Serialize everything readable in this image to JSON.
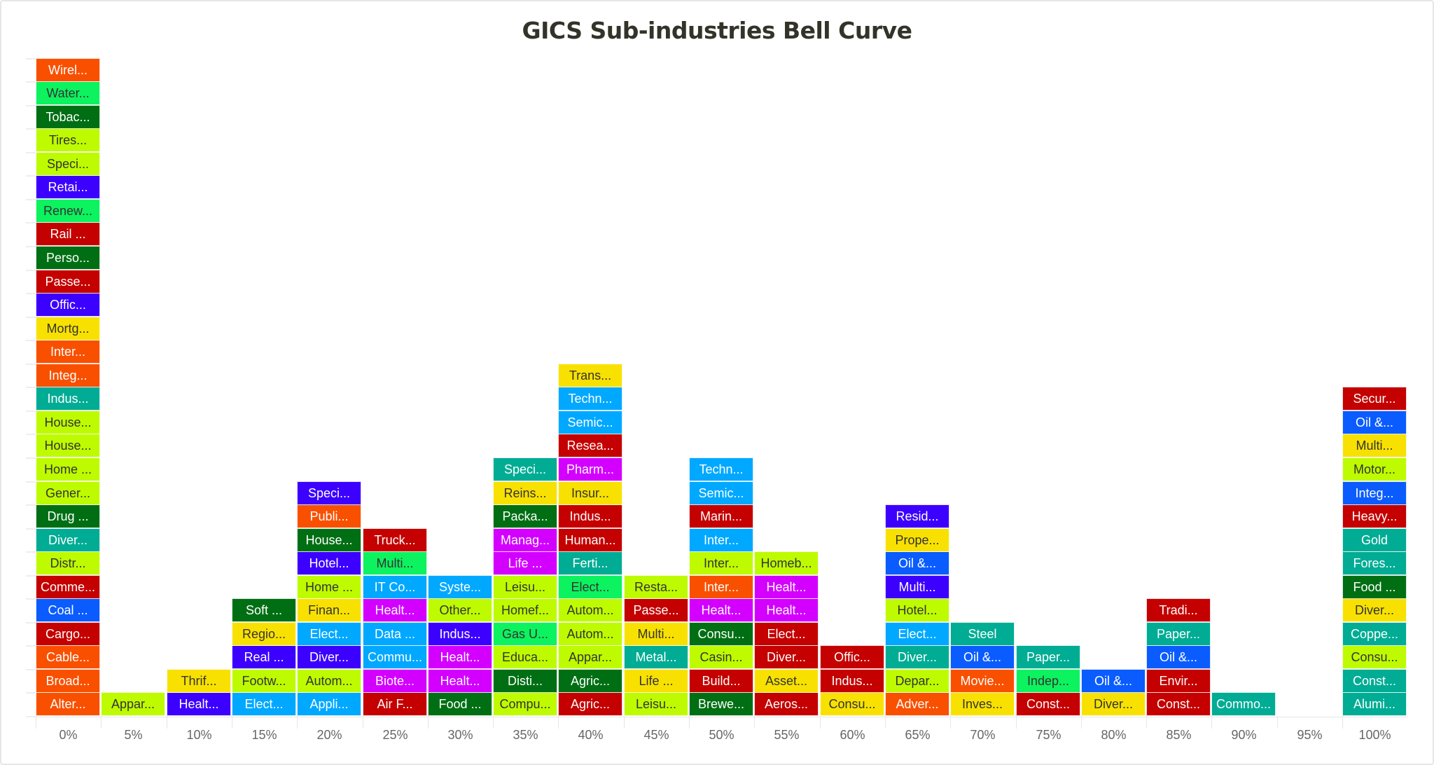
{
  "chart_data": {
    "type": "stacked-tile",
    "title": "GICS Sub-industries Bell Curve",
    "grid": false,
    "legend": "none",
    "palette": {
      "orange": "#F95000",
      "green": "#0DF25F",
      "darkgreen": "#006F14",
      "lime": "#BEFB00",
      "violet": "#3C00FF",
      "red": "#C40000",
      "yellow": "#F8E100",
      "teal": "#00AC94",
      "blue": "#0A5CFF",
      "sky": "#00A8FF",
      "magenta": "#D300FF"
    },
    "categories": [
      "0%",
      "5%",
      "10%",
      "15%",
      "20%",
      "25%",
      "30%",
      "35%",
      "40%",
      "45%",
      "50%",
      "55%",
      "60%",
      "65%",
      "70%",
      "75%",
      "80%",
      "85%",
      "90%",
      "95%",
      "100%"
    ],
    "columns": [
      [
        [
          "Alter...",
          "orange"
        ],
        [
          "Broad...",
          "orange"
        ],
        [
          "Cable...",
          "orange"
        ],
        [
          "Cargo...",
          "red"
        ],
        [
          "Coal ...",
          "blue"
        ],
        [
          "Comme...",
          "red"
        ],
        [
          "Distr...",
          "lime"
        ],
        [
          "Diver...",
          "teal"
        ],
        [
          "Drug ...",
          "darkgreen"
        ],
        [
          "Gener...",
          "lime"
        ],
        [
          "Home ...",
          "lime"
        ],
        [
          "House...",
          "lime"
        ],
        [
          "House...",
          "lime"
        ],
        [
          "Indus...",
          "teal"
        ],
        [
          "Integ...",
          "orange"
        ],
        [
          "Inter...",
          "orange"
        ],
        [
          "Mortg...",
          "yellow"
        ],
        [
          "Offic...",
          "violet"
        ],
        [
          "Passe...",
          "red"
        ],
        [
          "Perso...",
          "darkgreen"
        ],
        [
          "Rail ...",
          "red"
        ],
        [
          "Renew...",
          "green"
        ],
        [
          "Retai...",
          "violet"
        ],
        [
          "Speci...",
          "lime"
        ],
        [
          "Tires...",
          "lime"
        ],
        [
          "Tobac...",
          "darkgreen"
        ],
        [
          "Water...",
          "green"
        ],
        [
          "Wirel...",
          "orange"
        ]
      ],
      [
        [
          "Appar...",
          "lime"
        ]
      ],
      [
        [
          "Healt...",
          "violet"
        ],
        [
          "Thrif...",
          "yellow"
        ]
      ],
      [
        [
          "Elect...",
          "sky"
        ],
        [
          "Footw...",
          "lime"
        ],
        [
          "Real ...",
          "violet"
        ],
        [
          "Regio...",
          "yellow"
        ],
        [
          "Soft ...",
          "darkgreen"
        ]
      ],
      [
        [
          "Appli...",
          "sky"
        ],
        [
          "Autom...",
          "lime"
        ],
        [
          "Diver...",
          "violet"
        ],
        [
          "Elect...",
          "sky"
        ],
        [
          "Finan...",
          "yellow"
        ],
        [
          "Home ...",
          "lime"
        ],
        [
          "Hotel...",
          "violet"
        ],
        [
          "House...",
          "darkgreen"
        ],
        [
          "Publi...",
          "orange"
        ],
        [
          "Speci...",
          "violet"
        ]
      ],
      [
        [
          "Air F...",
          "red"
        ],
        [
          "Biote...",
          "magenta"
        ],
        [
          "Commu...",
          "sky"
        ],
        [
          "Data ...",
          "sky"
        ],
        [
          "Healt...",
          "magenta"
        ],
        [
          "IT Co...",
          "sky"
        ],
        [
          "Multi...",
          "green"
        ],
        [
          "Truck...",
          "red"
        ]
      ],
      [
        [
          "Food ...",
          "darkgreen"
        ],
        [
          "Healt...",
          "magenta"
        ],
        [
          "Healt...",
          "magenta"
        ],
        [
          "Indus...",
          "violet"
        ],
        [
          "Other...",
          "lime"
        ],
        [
          "Syste...",
          "sky"
        ]
      ],
      [
        [
          "Compu...",
          "lime"
        ],
        [
          "Disti...",
          "darkgreen"
        ],
        [
          "Educa...",
          "lime"
        ],
        [
          "Gas U...",
          "green"
        ],
        [
          "Homef...",
          "lime"
        ],
        [
          "Leisu...",
          "lime"
        ],
        [
          "Life ...",
          "magenta"
        ],
        [
          "Manag...",
          "magenta"
        ],
        [
          "Packa...",
          "darkgreen"
        ],
        [
          "Reins...",
          "yellow"
        ],
        [
          "Speci...",
          "teal"
        ]
      ],
      [
        [
          "Agric...",
          "red"
        ],
        [
          "Agric...",
          "darkgreen"
        ],
        [
          "Appar...",
          "lime"
        ],
        [
          "Autom...",
          "lime"
        ],
        [
          "Autom...",
          "lime"
        ],
        [
          "Elect...",
          "green"
        ],
        [
          "Ferti...",
          "teal"
        ],
        [
          "Human...",
          "red"
        ],
        [
          "Indus...",
          "red"
        ],
        [
          "Insur...",
          "yellow"
        ],
        [
          "Pharm...",
          "magenta"
        ],
        [
          "Resea...",
          "red"
        ],
        [
          "Semic...",
          "sky"
        ],
        [
          "Techn...",
          "sky"
        ],
        [
          "Trans...",
          "yellow"
        ]
      ],
      [
        [
          "Leisu...",
          "lime"
        ],
        [
          "Life ...",
          "yellow"
        ],
        [
          "Metal...",
          "teal"
        ],
        [
          "Multi...",
          "yellow"
        ],
        [
          "Passe...",
          "red"
        ],
        [
          "Resta...",
          "lime"
        ]
      ],
      [
        [
          "Brewe...",
          "darkgreen"
        ],
        [
          "Build...",
          "red"
        ],
        [
          "Casin...",
          "lime"
        ],
        [
          "Consu...",
          "darkgreen"
        ],
        [
          "Healt...",
          "magenta"
        ],
        [
          "Inter...",
          "orange"
        ],
        [
          "Inter...",
          "lime"
        ],
        [
          "Inter...",
          "sky"
        ],
        [
          "Marin...",
          "red"
        ],
        [
          "Semic...",
          "sky"
        ],
        [
          "Techn...",
          "sky"
        ]
      ],
      [
        [
          "Aeros...",
          "red"
        ],
        [
          "Asset...",
          "yellow"
        ],
        [
          "Diver...",
          "red"
        ],
        [
          "Elect...",
          "red"
        ],
        [
          "Healt...",
          "magenta"
        ],
        [
          "Healt...",
          "magenta"
        ],
        [
          "Homeb...",
          "lime"
        ]
      ],
      [
        [
          "Consu...",
          "yellow"
        ],
        [
          "Indus...",
          "red"
        ],
        [
          "Offic...",
          "red"
        ]
      ],
      [
        [
          "Adver...",
          "orange"
        ],
        [
          "Depar...",
          "lime"
        ],
        [
          "Diver...",
          "teal"
        ],
        [
          "Elect...",
          "sky"
        ],
        [
          "Hotel...",
          "lime"
        ],
        [
          "Multi...",
          "violet"
        ],
        [
          "Oil &...",
          "blue"
        ],
        [
          "Prope...",
          "yellow"
        ],
        [
          "Resid...",
          "violet"
        ]
      ],
      [
        [
          "Inves...",
          "yellow"
        ],
        [
          "Movie...",
          "orange"
        ],
        [
          "Oil &...",
          "blue"
        ],
        [
          "Steel",
          "teal"
        ]
      ],
      [
        [
          "Const...",
          "red"
        ],
        [
          "Indep...",
          "green"
        ],
        [
          "Paper...",
          "teal"
        ]
      ],
      [
        [
          "Diver...",
          "yellow"
        ],
        [
          "Oil &...",
          "blue"
        ]
      ],
      [
        [
          "Const...",
          "red"
        ],
        [
          "Envir...",
          "red"
        ],
        [
          "Oil &...",
          "blue"
        ],
        [
          "Paper...",
          "teal"
        ],
        [
          "Tradi...",
          "red"
        ]
      ],
      [
        [
          "Commo...",
          "teal"
        ]
      ],
      [],
      [
        [
          "Alumi...",
          "teal"
        ],
        [
          "Const...",
          "teal"
        ],
        [
          "Consu...",
          "lime"
        ],
        [
          "Coppe...",
          "teal"
        ],
        [
          "Diver...",
          "yellow"
        ],
        [
          "Food ...",
          "darkgreen"
        ],
        [
          "Fores...",
          "teal"
        ],
        [
          "Gold",
          "teal"
        ],
        [
          "Heavy...",
          "red"
        ],
        [
          "Integ...",
          "blue"
        ],
        [
          "Motor...",
          "lime"
        ],
        [
          "Multi...",
          "yellow"
        ],
        [
          "Oil &...",
          "blue"
        ],
        [
          "Secur...",
          "red"
        ]
      ]
    ]
  }
}
